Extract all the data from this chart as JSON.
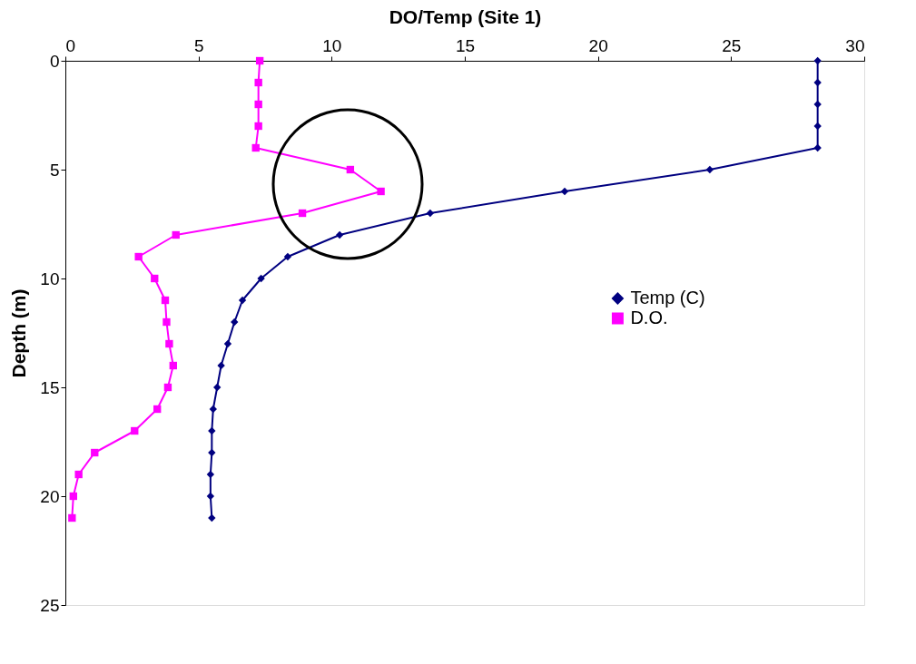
{
  "chart_data": {
    "type": "line",
    "xlabel": "DO/Temp (Site 1)",
    "ylabel": "Depth (m)",
    "xlim": [
      0,
      30
    ],
    "xticks": [
      0,
      5,
      10,
      15,
      20,
      25,
      30
    ],
    "ylim": [
      25,
      0
    ],
    "yticks": [
      0,
      5,
      10,
      15,
      20,
      25
    ],
    "grid": false,
    "legend": "right",
    "series": [
      {
        "name": "Temp (C)",
        "color": "#000080",
        "marker": "diamond",
        "line_style": "solid",
        "x": [
          28.25,
          28.25,
          28.25,
          28.25,
          28.25,
          24.2,
          18.75,
          13.7,
          10.3,
          8.35,
          7.35,
          6.65,
          6.35,
          6.1,
          5.85,
          5.7,
          5.55,
          5.5,
          5.5,
          5.45,
          5.45,
          5.5
        ],
        "values": [
          0,
          1,
          2,
          3,
          4,
          5,
          6,
          7,
          8,
          9,
          10,
          11,
          12,
          13,
          14,
          15,
          16,
          17,
          18,
          19,
          20,
          21
        ]
      },
      {
        "name": "D.O.",
        "color": "#ff00ff",
        "marker": "square",
        "line_style": "solid",
        "x": [
          7.3,
          7.25,
          7.25,
          7.25,
          7.15,
          10.7,
          11.85,
          8.9,
          4.15,
          2.75,
          3.35,
          3.75,
          3.8,
          3.9,
          4.05,
          3.85,
          3.45,
          2.6,
          1.1,
          0.5,
          0.3,
          0.25
        ],
        "values": [
          0,
          1,
          2,
          3,
          4,
          5,
          6,
          7,
          8,
          9,
          10,
          11,
          12,
          13,
          14,
          15,
          16,
          17,
          18,
          19,
          20,
          21
        ]
      }
    ]
  }
}
